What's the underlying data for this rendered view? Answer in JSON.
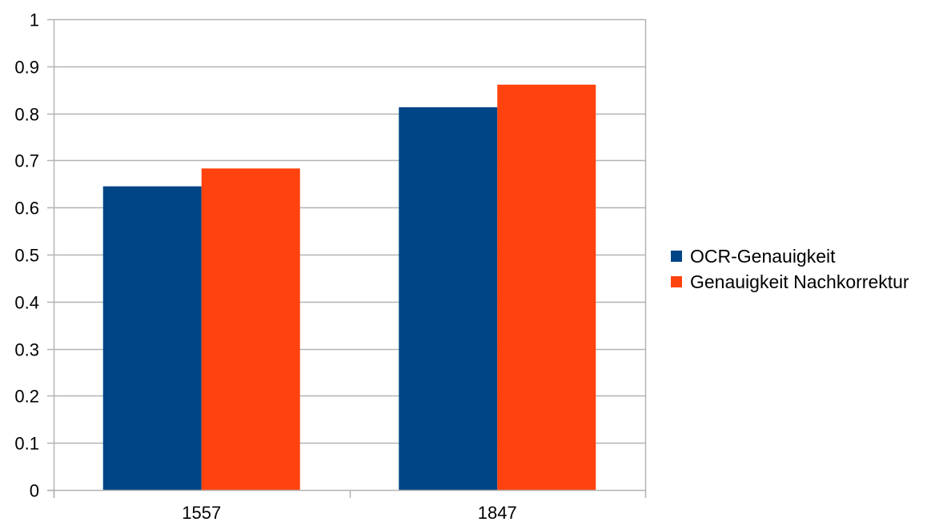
{
  "chart_data": {
    "type": "bar",
    "categories": [
      "1557",
      "1847"
    ],
    "series": [
      {
        "name": "OCR-Genauigkeit",
        "color": "#004586",
        "values": [
          0.645,
          0.813
        ]
      },
      {
        "name": "Genauigkeit Nachkorrektur",
        "color": "#ff420e",
        "values": [
          0.683,
          0.861
        ]
      }
    ],
    "y_ticks": [
      "0",
      "0.1",
      "0.2",
      "0.3",
      "0.4",
      "0.5",
      "0.6",
      "0.7",
      "0.8",
      "0.9",
      "1"
    ],
    "ylim": [
      0,
      1
    ],
    "grid": true,
    "legend_position": "right"
  }
}
